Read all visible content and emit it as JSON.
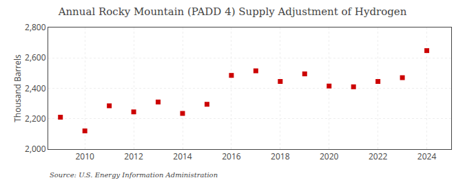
{
  "chart_data": {
    "type": "scatter",
    "title": "Annual Rocky Mountain (PADD 4) Supply Adjustment of Hydrogen",
    "ylabel": "Thousand Barrels",
    "source": "Source: U.S. Energy Information Administration",
    "x": [
      2009,
      2010,
      2011,
      2012,
      2013,
      2014,
      2015,
      2016,
      2017,
      2018,
      2019,
      2020,
      2021,
      2022,
      2023,
      2024
    ],
    "values": [
      2210,
      2120,
      2285,
      2245,
      2310,
      2235,
      2295,
      2485,
      2515,
      2445,
      2495,
      2415,
      2410,
      2445,
      2470,
      2648
    ],
    "color": "#cc0000",
    "marker": "square",
    "xlim": [
      2008.5,
      2025.0
    ],
    "xticks": [
      2010,
      2012,
      2014,
      2016,
      2018,
      2020,
      2022,
      2024
    ],
    "ylim": [
      2000,
      2800
    ],
    "yticks": [
      {
        "value": 2000,
        "label": "2,000"
      },
      {
        "value": 2200,
        "label": "2,200"
      },
      {
        "value": 2400,
        "label": "2,400"
      },
      {
        "value": 2600,
        "label": "2,600"
      },
      {
        "value": 2800,
        "label": "2,800"
      }
    ],
    "grid": true
  }
}
